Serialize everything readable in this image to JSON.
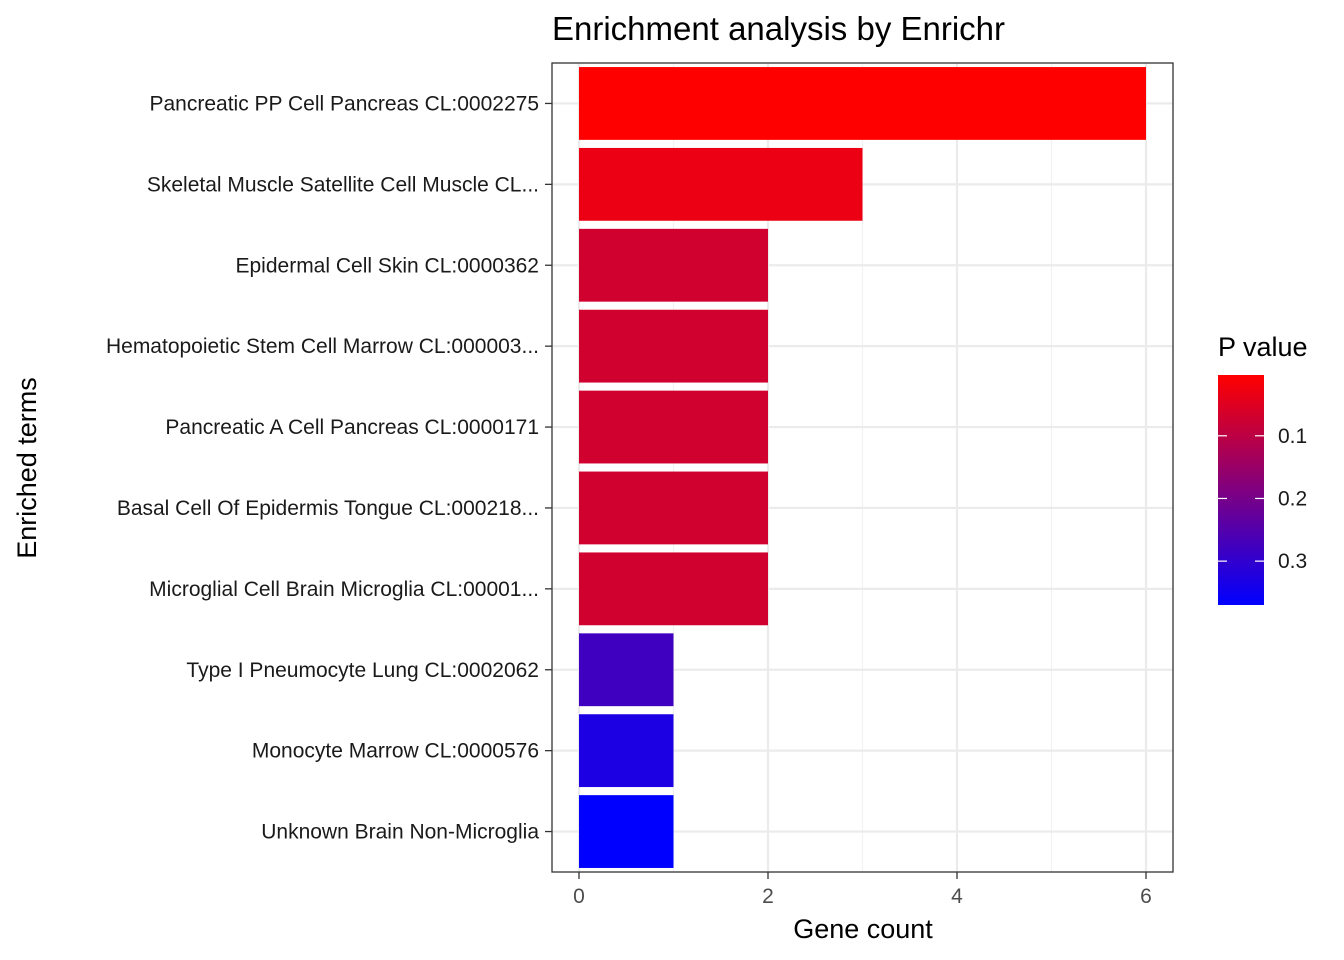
{
  "chart_data": {
    "type": "bar",
    "orientation": "horizontal",
    "title": "Enrichment analysis by Enrichr",
    "xlabel": "Gene count",
    "ylabel": "Enriched terms",
    "xlim": [
      0,
      6.2
    ],
    "x_ticks": [
      0,
      2,
      4,
      6
    ],
    "grid": true,
    "categories": [
      "Pancreatic PP Cell Pancreas CL:0002275",
      "Skeletal Muscle Satellite Cell Muscle CL...",
      "Epidermal Cell Skin CL:0000362",
      "Hematopoietic Stem Cell Marrow CL:000003...",
      "Pancreatic A Cell Pancreas CL:0000171",
      "Basal Cell Of Epidermis Tongue CL:000218...",
      "Microglial Cell Brain Microglia CL:00001...",
      "Type I Pneumocyte Lung CL:0002062",
      "Monocyte Marrow CL:0000576",
      "Unknown Brain Non-Microglia"
    ],
    "values": [
      6,
      3,
      2,
      2,
      2,
      2,
      2,
      1,
      1,
      1
    ],
    "p_values": [
      0.003,
      0.03,
      0.07,
      0.07,
      0.07,
      0.07,
      0.07,
      0.28,
      0.33,
      0.37
    ],
    "legend": {
      "title": "P value",
      "placement": "right",
      "range": [
        0.003,
        0.37
      ],
      "ticks": [
        0.1,
        0.2,
        0.3
      ],
      "tick_labels": [
        "0.1",
        "0.2",
        "0.3"
      ],
      "color_low": "#FF0000",
      "color_high": "#0000FF"
    }
  }
}
